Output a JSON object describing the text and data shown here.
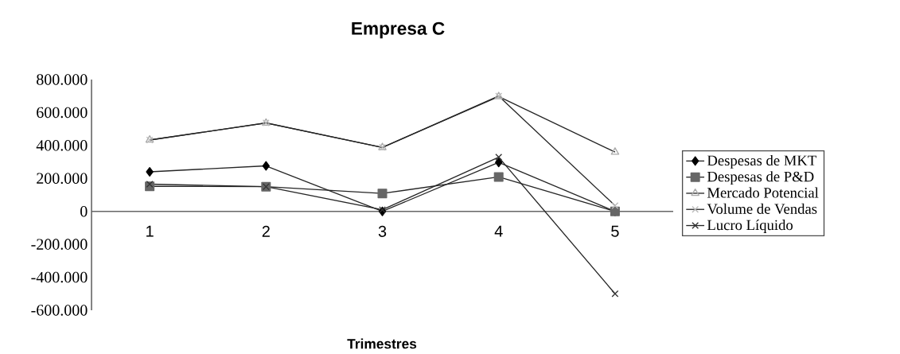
{
  "chart_data": {
    "type": "line",
    "title": "Empresa C",
    "xlabel": "Trimestres",
    "categories": [
      "1",
      "2",
      "3",
      "4",
      "5"
    ],
    "series": [
      {
        "name": "Despesas de MKT",
        "color": "#000000",
        "marker": "diamond",
        "values": [
          240000,
          276000,
          0,
          297000,
          0
        ]
      },
      {
        "name": "Despesas de P&D",
        "color": "#666666",
        "marker": "square",
        "values": [
          152000,
          150000,
          109000,
          209000,
          0
        ]
      },
      {
        "name": "Mercado Potencial",
        "color": "#aaaaaa",
        "marker": "triangle",
        "values": [
          433000,
          536000,
          388000,
          697000,
          360000
        ]
      },
      {
        "name": "Volume de Vendas",
        "color": "#bbbbbb",
        "marker": "cross",
        "values": [
          433000,
          537000,
          388000,
          700000,
          35000
        ]
      },
      {
        "name": "Lucro Líquido",
        "color": "#333333",
        "marker": "cross",
        "values": [
          165000,
          150000,
          10000,
          329000,
          -500000
        ]
      }
    ],
    "ylim": [
      -600000,
      800000
    ],
    "yticks": [
      {
        "value": 800000,
        "label": "800.000"
      },
      {
        "value": 600000,
        "label": "600.000"
      },
      {
        "value": 400000,
        "label": "400.000"
      },
      {
        "value": 200000,
        "label": "200.000"
      },
      0,
      {
        "value": -200000,
        "label": "-200.000"
      },
      {
        "value": -400000,
        "label": "-400.000"
      },
      {
        "value": -600000,
        "label": "-600.000"
      }
    ],
    "legend": "right",
    "grid": false,
    "line_style": "solid"
  }
}
